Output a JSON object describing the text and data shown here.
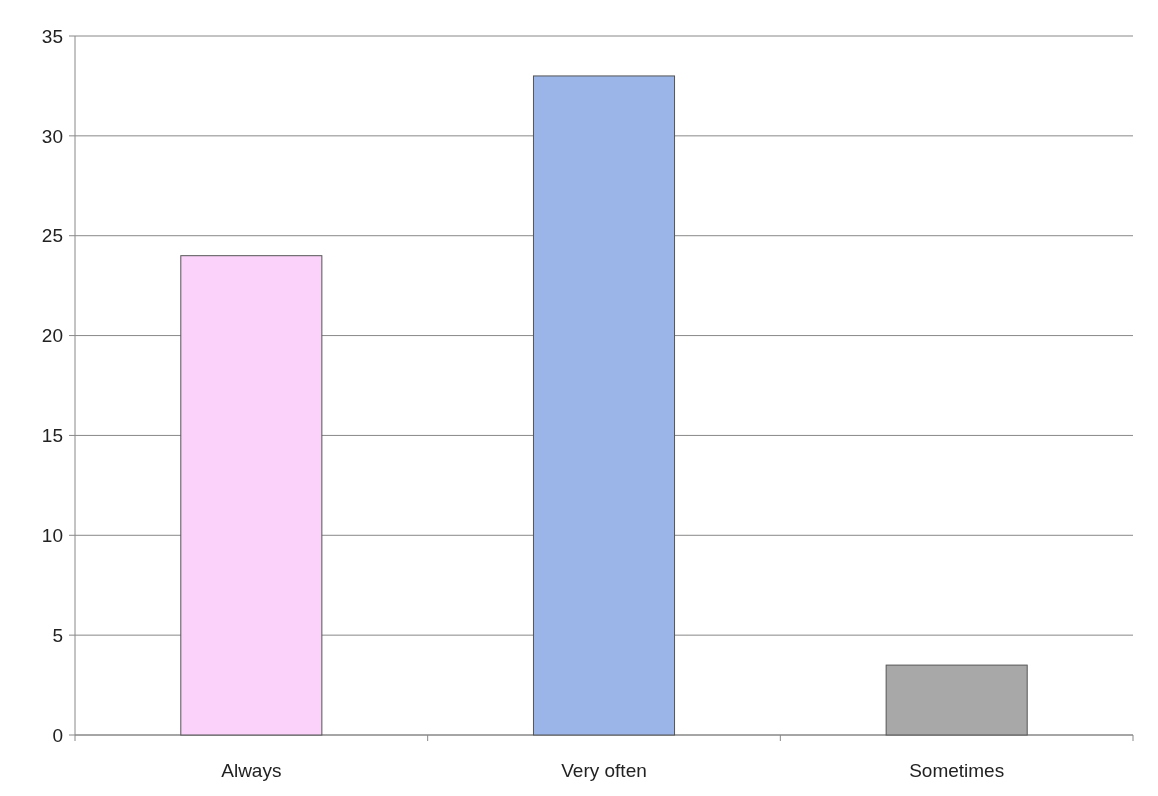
{
  "chart_data": {
    "type": "bar",
    "categories": [
      "Always",
      "Very often",
      "Sometimes"
    ],
    "values": [
      24,
      33,
      3.5
    ],
    "colors": [
      "#fad2fa",
      "#9bb5e8",
      "#a8a8a8"
    ],
    "ylim": [
      0,
      35
    ],
    "yticks": [
      0,
      5,
      10,
      15,
      20,
      25,
      30,
      35
    ],
    "grid": "y"
  }
}
